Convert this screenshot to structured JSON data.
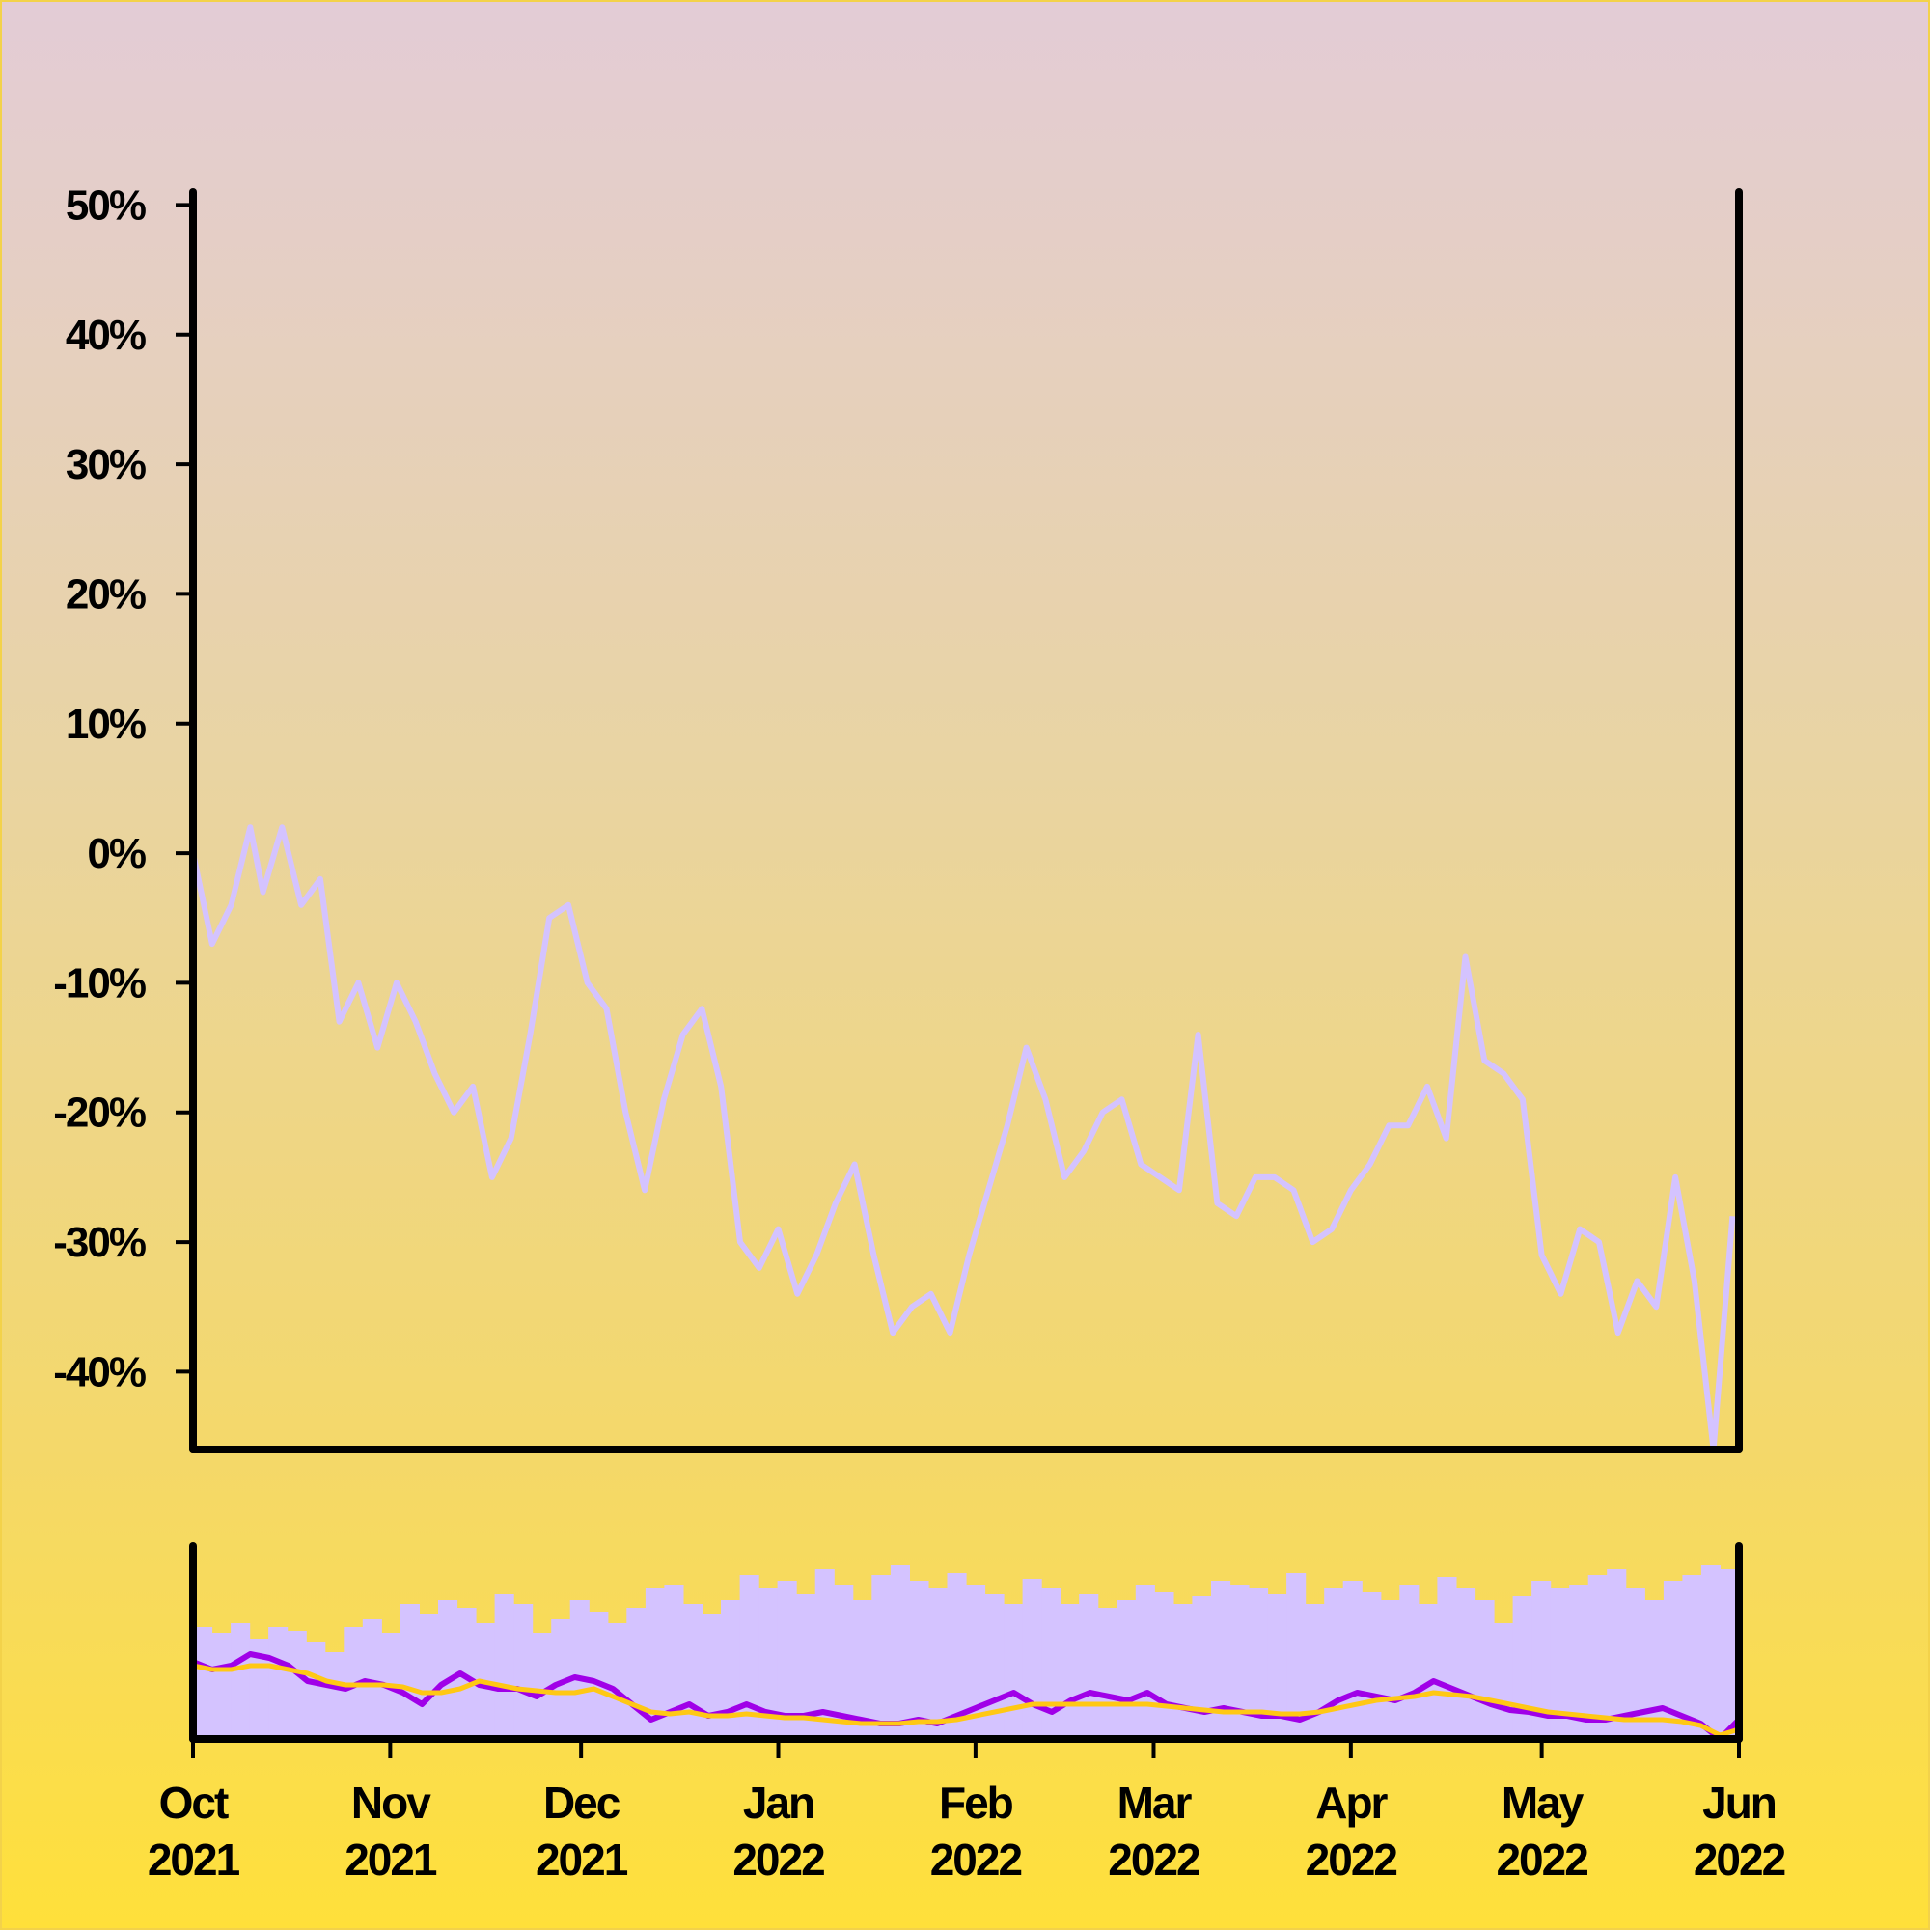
{
  "chart_data": [
    {
      "type": "line",
      "description": "Cumulative return (%) from Oct 2021 to Jun 2022",
      "ylim": [
        -46,
        51
      ],
      "y_ticks": [
        50,
        40,
        30,
        20,
        10,
        0,
        -10,
        -20,
        -30,
        -40
      ],
      "y_tick_labels": [
        "50%",
        "40%",
        "30%",
        "20%",
        "10%",
        "0%",
        "-10%",
        "-20%",
        "-30%",
        "-40%"
      ],
      "grid": false,
      "series": [
        {
          "color": "#d4c3ff",
          "x": [
            "2021-10-01",
            "2021-10-04",
            "2021-10-07",
            "2021-10-10",
            "2021-10-12",
            "2021-10-15",
            "2021-10-18",
            "2021-10-21",
            "2021-10-24",
            "2021-10-27",
            "2021-10-30",
            "2021-11-02",
            "2021-11-05",
            "2021-11-08",
            "2021-11-11",
            "2021-11-14",
            "2021-11-17",
            "2021-11-20",
            "2021-11-23",
            "2021-11-26",
            "2021-11-29",
            "2021-12-02",
            "2021-12-05",
            "2021-12-08",
            "2021-12-11",
            "2021-12-14",
            "2021-12-17",
            "2021-12-20",
            "2021-12-23",
            "2021-12-26",
            "2021-12-29",
            "2022-01-01",
            "2022-01-04",
            "2022-01-07",
            "2022-01-10",
            "2022-01-13",
            "2022-01-16",
            "2022-01-19",
            "2022-01-22",
            "2022-01-25",
            "2022-01-28",
            "2022-01-31",
            "2022-02-03",
            "2022-02-06",
            "2022-02-09",
            "2022-02-12",
            "2022-02-15",
            "2022-02-18",
            "2022-02-21",
            "2022-02-24",
            "2022-02-27",
            "2022-03-02",
            "2022-03-05",
            "2022-03-08",
            "2022-03-11",
            "2022-03-14",
            "2022-03-17",
            "2022-03-20",
            "2022-03-23",
            "2022-03-26",
            "2022-03-29",
            "2022-04-01",
            "2022-04-04",
            "2022-04-07",
            "2022-04-10",
            "2022-04-13",
            "2022-04-16",
            "2022-04-19",
            "2022-04-22",
            "2022-04-25",
            "2022-04-28",
            "2022-05-01",
            "2022-05-04",
            "2022-05-07",
            "2022-05-10",
            "2022-05-13",
            "2022-05-16",
            "2022-05-19",
            "2022-05-22",
            "2022-05-25",
            "2022-05-28",
            "2022-05-31"
          ],
          "y": [
            0,
            -7,
            -4,
            2,
            -3,
            2,
            -4,
            -2,
            -13,
            -10,
            -15,
            -10,
            -13,
            -17,
            -20,
            -18,
            -25,
            -22,
            -14,
            -5,
            -4,
            -10,
            -12,
            -20,
            -26,
            -19,
            -14,
            -12,
            -18,
            -30,
            -32,
            -29,
            -34,
            -31,
            -27,
            -24,
            -31,
            -37,
            -35,
            -34,
            -37,
            -31,
            -26,
            -21,
            -15,
            -19,
            -25,
            -23,
            -20,
            -19,
            -24,
            -25,
            -26,
            -14,
            -27,
            -28,
            -25,
            -25,
            -26,
            -30,
            -29,
            -26,
            -24,
            -21,
            -21,
            -18,
            -22,
            -8,
            -16,
            -17,
            -19,
            -31,
            -34,
            -29,
            -30,
            -37,
            -33,
            -35,
            -25,
            -33,
            -46,
            -28
          ]
        }
      ]
    },
    {
      "type": "area",
      "description": "Volume bars with moving averages (no axis scale shown)",
      "ylim": [
        0,
        100
      ],
      "x_ticks": [
        "2021-10-01",
        "2021-11-01",
        "2021-12-01",
        "2022-01-01",
        "2022-02-01",
        "2022-03-01",
        "2022-04-01",
        "2022-05-01",
        "2022-06-01"
      ],
      "x_tick_labels": [
        [
          "Oct",
          "2021"
        ],
        [
          "Nov",
          "2021"
        ],
        [
          "Dec",
          "2021"
        ],
        [
          "Jan",
          "2022"
        ],
        [
          "Feb",
          "2022"
        ],
        [
          "Mar",
          "2022"
        ],
        [
          "Apr",
          "2022"
        ],
        [
          "May",
          "2022"
        ],
        [
          "Jun",
          "2022"
        ]
      ],
      "volume": {
        "color": "#d4c3ff",
        "values": [
          58,
          55,
          60,
          52,
          58,
          56,
          50,
          45,
          58,
          62,
          55,
          70,
          65,
          72,
          68,
          60,
          75,
          70,
          55,
          62,
          72,
          66,
          60,
          68,
          78,
          80,
          70,
          65,
          72,
          85,
          78,
          82,
          75,
          88,
          80,
          72,
          85,
          90,
          82,
          78,
          86,
          80,
          75,
          70,
          83,
          78,
          70,
          75,
          68,
          72,
          80,
          76,
          70,
          74,
          82,
          80,
          78,
          75,
          86,
          70,
          78,
          82,
          76,
          72,
          80,
          70,
          84,
          78,
          72,
          60,
          74,
          82,
          78,
          80,
          85,
          88,
          78,
          72,
          82,
          85,
          90,
          88
        ]
      },
      "series": [
        {
          "color": "#a000e8",
          "values": [
            40,
            36,
            38,
            44,
            42,
            38,
            30,
            28,
            26,
            30,
            28,
            24,
            18,
            28,
            34,
            28,
            26,
            26,
            22,
            28,
            32,
            30,
            26,
            18,
            10,
            14,
            18,
            12,
            14,
            18,
            14,
            12,
            12,
            14,
            12,
            10,
            8,
            8,
            10,
            8,
            12,
            16,
            20,
            24,
            18,
            14,
            20,
            24,
            22,
            20,
            24,
            18,
            16,
            14,
            16,
            14,
            12,
            12,
            10,
            14,
            20,
            24,
            22,
            20,
            24,
            30,
            26,
            22,
            18,
            15,
            14,
            12,
            12,
            10,
            10,
            12,
            14,
            16,
            12,
            8,
            0,
            10
          ]
        },
        {
          "color": "#ffc814",
          "values": [
            38,
            36,
            36,
            38,
            38,
            36,
            34,
            30,
            28,
            28,
            28,
            27,
            24,
            24,
            26,
            30,
            28,
            26,
            25,
            24,
            24,
            26,
            22,
            18,
            14,
            13,
            14,
            12,
            12,
            13,
            12,
            11,
            11,
            10,
            9,
            8,
            8,
            8,
            9,
            9,
            10,
            12,
            14,
            16,
            18,
            18,
            18,
            18,
            18,
            18,
            18,
            17,
            16,
            15,
            14,
            14,
            14,
            13,
            13,
            14,
            16,
            18,
            20,
            21,
            22,
            24,
            23,
            22,
            20,
            18,
            16,
            14,
            13,
            12,
            11,
            10,
            10,
            10,
            9,
            7,
            2,
            5
          ]
        }
      ]
    }
  ]
}
